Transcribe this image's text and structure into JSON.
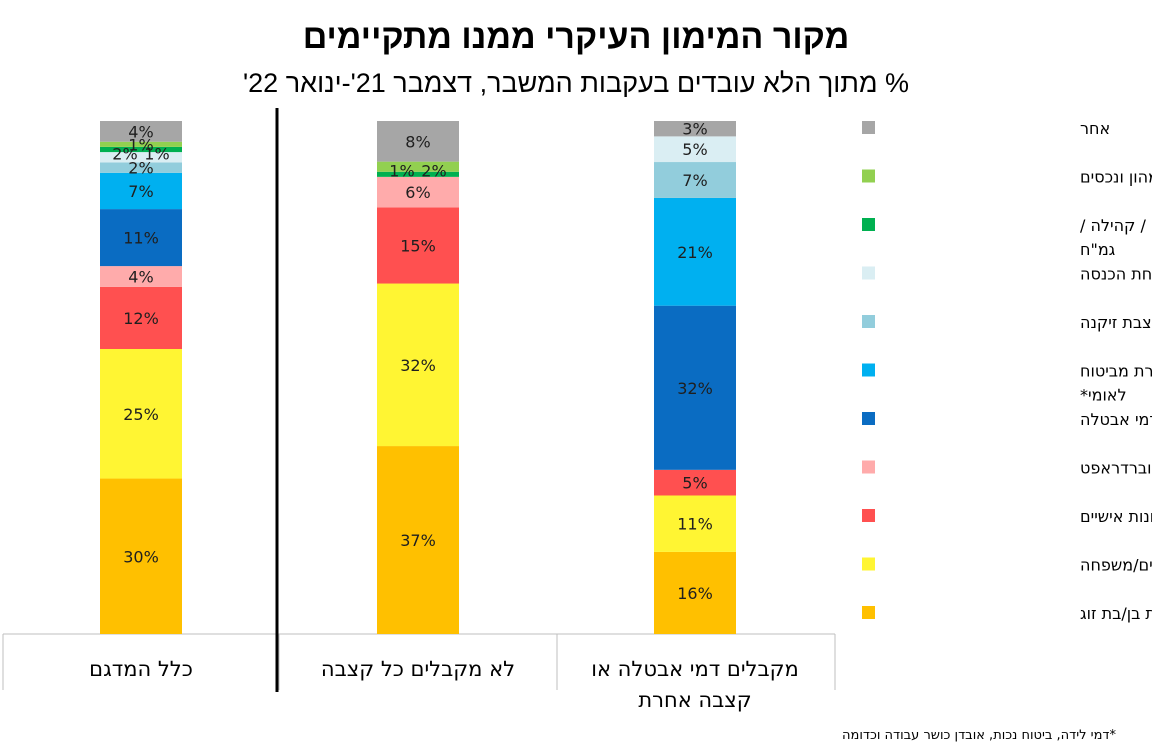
{
  "chart_data": {
    "type": "bar",
    "stacked": true,
    "title": "מקור המימון העיקרי ממנו מתקיימים",
    "subtitle": "% מתוך הלא עובדים בעקבות המשבר, דצמבר 21'-ינואר 22'",
    "categories": [
      "כלל המדגם",
      "לא מקבלים כל קצבה",
      "מקבלים דמי אבטלה או קצבה אחרת"
    ],
    "category_lines": [
      [
        "כלל המדגם"
      ],
      [
        "לא מקבלים כל קצבה"
      ],
      [
        "מקבלים דמי אבטלה או",
        "קצבה אחרת"
      ]
    ],
    "series": [
      {
        "name": "הכנסות בן/בת זוג",
        "color": "#FFC000",
        "values": [
          30,
          37,
          16
        ]
      },
      {
        "name": "עזרה מההורים/משפחה",
        "color": "#FFF533",
        "values": [
          25,
          32,
          11
        ]
      },
      {
        "name": "פתיחת חסכונות אישיים",
        "color": "#FF5050",
        "values": [
          12,
          15,
          5
        ]
      },
      {
        "name": "הלוואות / אוברדראפט",
        "color": "#FFABAB",
        "values": [
          4,
          6,
          0
        ]
      },
      {
        "name": "דמי אבטלה",
        "color": "#0A6CC2",
        "values": [
          11,
          0,
          32
        ]
      },
      {
        "name": "קצבה אחרת מביטוח לאומי*",
        "color": "#00B0F0",
        "values": [
          7,
          0,
          21
        ]
      },
      {
        "name": "פנסיה / קצבת זיקנה",
        "color": "#92CDDC",
        "values": [
          2,
          0,
          7
        ]
      },
      {
        "name": "הבטחת הכנסה",
        "color": "#DAEEF3",
        "values": [
          2,
          0,
          5
        ]
      },
      {
        "name": "עזרה מחברים / קהילה / גמ\"ח",
        "color": "#00B050",
        "values": [
          1,
          1,
          0
        ]
      },
      {
        "name": "הכנסות מהון ונכסים",
        "color": "#92D050",
        "values": [
          1,
          2,
          0
        ]
      },
      {
        "name": "אחר",
        "color": "#A6A6A6",
        "values": [
          4,
          8,
          3
        ]
      }
    ],
    "legend_lines": [
      [
        "הכנסות בן/בת זוג"
      ],
      [
        "עזרה מההורים/משפחה"
      ],
      [
        "פתיחת חסכונות אישיים"
      ],
      [
        "הלוואות / אוברדראפט"
      ],
      [
        "דמי אבטלה"
      ],
      [
        "קצבה אחרת מביטוח",
        "לאומי*"
      ],
      [
        "פנסיה / קצבת זיקנה"
      ],
      [
        "הבטחת הכנסה"
      ],
      [
        "עזרה מחברים / קהילה /",
        "גמ\"ח"
      ],
      [
        "הכנסות מהון ונכסים"
      ],
      [
        "אחר"
      ]
    ],
    "ylim": [
      0,
      100
    ],
    "grid": false,
    "legend_position": "right",
    "value_suffix": "%"
  },
  "footnote": "*דמי לידה, ביטוח נכות, אובדן כושר עבודה וכדומה"
}
